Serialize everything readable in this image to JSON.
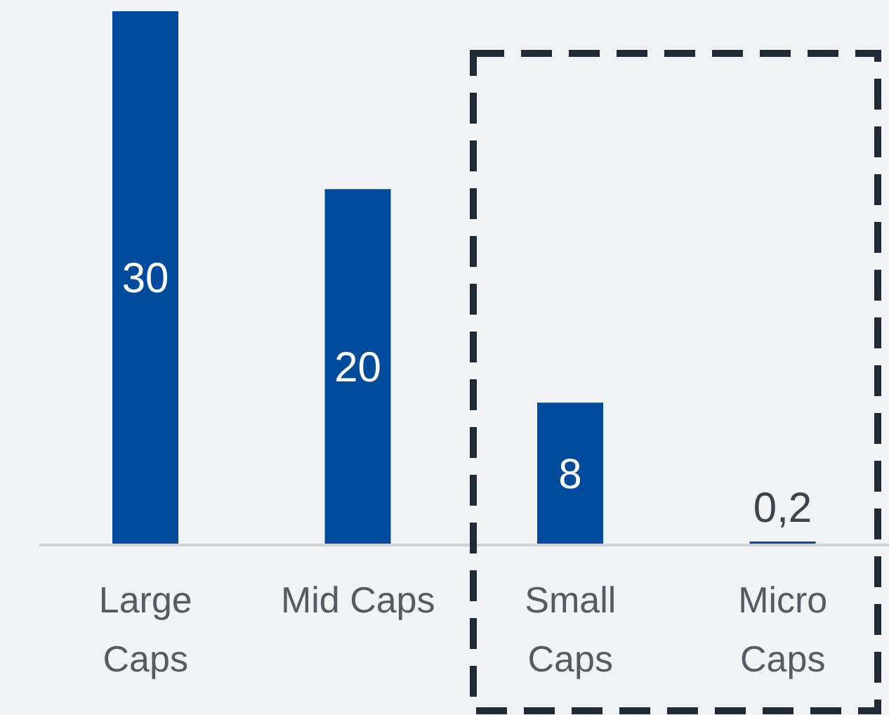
{
  "chart_data": {
    "type": "bar",
    "categories": [
      "Large Caps",
      "Mid Caps",
      "Small Caps",
      "Micro Caps"
    ],
    "values": [
      30,
      20,
      8,
      0.2
    ],
    "color": "#004b9b",
    "value_labels": [
      "30",
      "20",
      "8",
      "0,2"
    ],
    "ylim": [
      0,
      30
    ]
  }
}
